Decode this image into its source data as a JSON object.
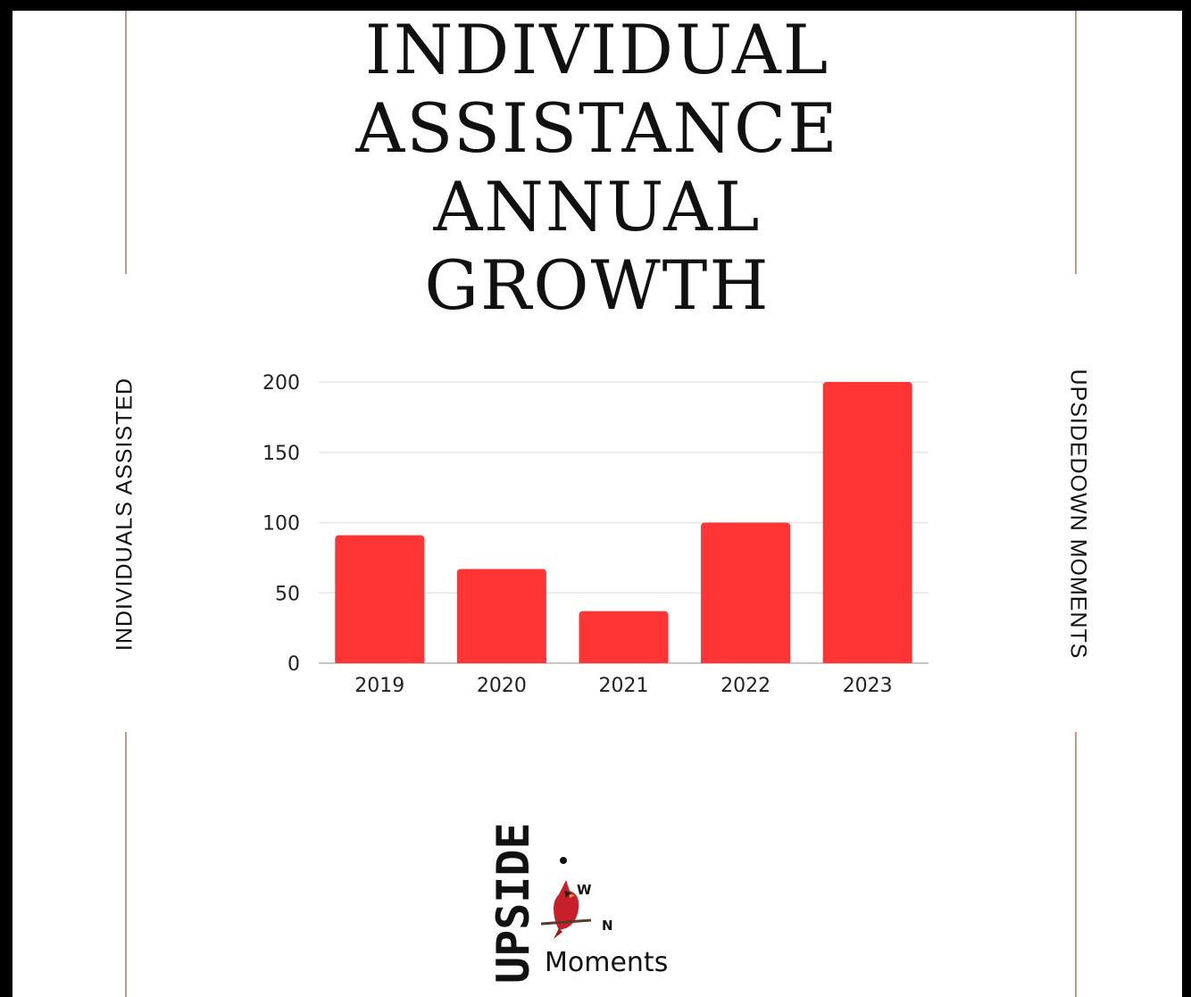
{
  "title_lines": [
    "INDIVIDUAL",
    "ASSISTANCE",
    "ANNUAL",
    "GROWTH"
  ],
  "left_side_text": "INDIVIDUALS ASSISTED",
  "right_side_text": "UPSIDEDOWN MOMENTS",
  "chart_data": {
    "type": "bar",
    "title": "INDIVIDUAL ASSISTANCE ANNUAL GROWTH",
    "xlabel": "",
    "ylabel": "INDIVIDUALS ASSISTED",
    "categories": [
      "2019",
      "2020",
      "2021",
      "2022",
      "2023"
    ],
    "values": [
      91,
      67,
      37,
      100,
      200
    ],
    "ylim": [
      0,
      200
    ],
    "yticks": [
      0,
      50,
      100,
      150,
      200
    ],
    "grid": true,
    "legend": "none",
    "bar_color": "#ff3434"
  },
  "logo": {
    "vertical_word": "UPSIDE",
    "letters": [
      "O",
      "W",
      "N"
    ],
    "script_word": "Moments",
    "icon": "cardinal-bird-icon"
  },
  "colors": {
    "border": "#000000",
    "divider": "#b89b8b",
    "accent_red": "#ff3434"
  }
}
